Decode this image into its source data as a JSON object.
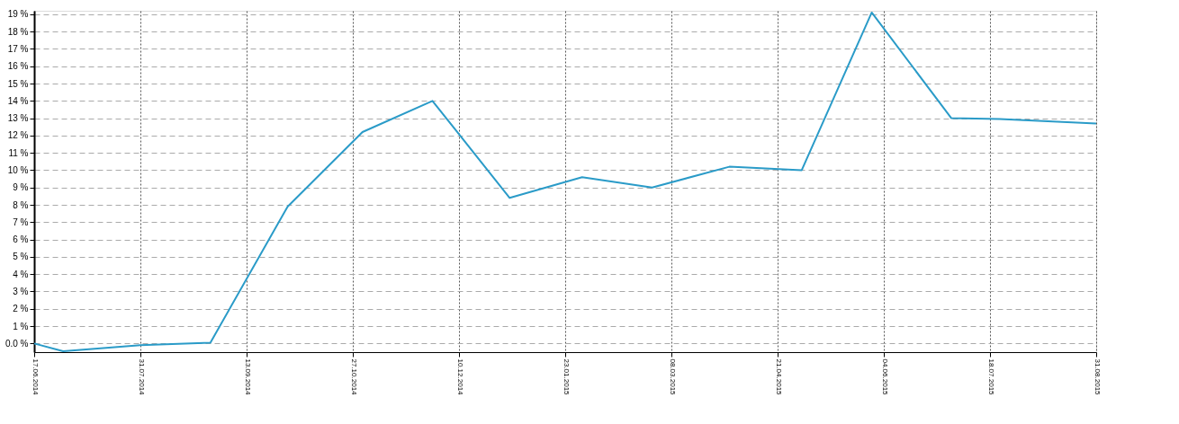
{
  "chart_data": {
    "type": "line",
    "x": [
      "2014-06-17",
      "2014-06-29",
      "2014-07-31",
      "2014-08-29",
      "2014-09-30",
      "2014-10-31",
      "2014-11-29",
      "2014-12-31",
      "2015-01-30",
      "2015-02-28",
      "2015-04-01",
      "2015-05-01",
      "2015-05-30",
      "2015-07-02",
      "2015-07-22",
      "2015-08-31"
    ],
    "series": [
      {
        "color": "#2a9bc8",
        "values": [
          0,
          -0.45,
          -0.1,
          0.05,
          7.9,
          12.2,
          14.0,
          8.4,
          9.6,
          9.0,
          10.2,
          10.0,
          19.1,
          13.0,
          12.95,
          12.7
        ]
      }
    ],
    "xlim": [
      "2014-06-17",
      "2015-08-31"
    ],
    "xticks": [
      {
        "value": "2014-06-17",
        "label": "17.06.2014"
      },
      {
        "value": "2014-07-31",
        "label": "31.07.2014"
      },
      {
        "value": "2014-09-13",
        "label": "13.09.2014"
      },
      {
        "value": "2014-10-27",
        "label": "27.10.2014"
      },
      {
        "value": "2014-12-10",
        "label": "10.12.2014"
      },
      {
        "value": "2015-01-23",
        "label": "23.01.2015"
      },
      {
        "value": "2015-03-08",
        "label": "08.03.2015"
      },
      {
        "value": "2015-04-21",
        "label": "21.04.2015"
      },
      {
        "value": "2015-06-04",
        "label": "04.06.2015"
      },
      {
        "value": "2015-07-18",
        "label": "18.07.2015"
      },
      {
        "value": "2015-08-31",
        "label": "31.08.2015"
      }
    ],
    "ylim": [
      -0.5,
      19.2
    ],
    "yticks": [
      {
        "value": 0,
        "label": "0.0 %"
      },
      {
        "value": 1,
        "label": "1 %"
      },
      {
        "value": 2,
        "label": "2 %"
      },
      {
        "value": 3,
        "label": "3 %"
      },
      {
        "value": 4,
        "label": "4 %"
      },
      {
        "value": 5,
        "label": "5 %"
      },
      {
        "value": 6,
        "label": "6 %"
      },
      {
        "value": 7,
        "label": "7 %"
      },
      {
        "value": 8,
        "label": "8 %"
      },
      {
        "value": 9,
        "label": "9 %"
      },
      {
        "value": 10,
        "label": "10 %"
      },
      {
        "value": 11,
        "label": "11 %"
      },
      {
        "value": 12,
        "label": "12 %"
      },
      {
        "value": 13,
        "label": "13 %"
      },
      {
        "value": 14,
        "label": "14 %"
      },
      {
        "value": 15,
        "label": "15 %"
      },
      {
        "value": 16,
        "label": "16 %"
      },
      {
        "value": 17,
        "label": "17 %"
      },
      {
        "value": 18,
        "label": "18 %"
      },
      {
        "value": 19,
        "label": "19 %"
      }
    ],
    "grid": true,
    "marker": "none",
    "line_style": "solid"
  }
}
